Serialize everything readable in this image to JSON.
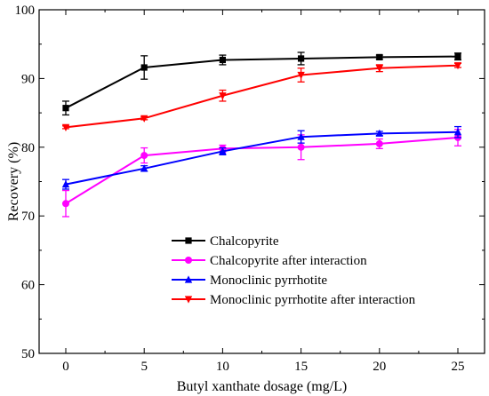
{
  "chart_data": {
    "type": "line",
    "xlabel": "Butyl xanthate dosage (mg/L)",
    "ylabel": "Recovery (%)",
    "xlim": [
      -1.7,
      26.7
    ],
    "ylim": [
      50,
      100
    ],
    "x_ticks": [
      0,
      5,
      10,
      15,
      20,
      25
    ],
    "y_ticks": [
      50,
      60,
      70,
      80,
      90,
      100
    ],
    "x": [
      0,
      5,
      10,
      15,
      20,
      25
    ],
    "grid": false,
    "legend_position": "lower-center",
    "series": [
      {
        "name": "Chalcopyrite",
        "color": "#000000",
        "marker": "square",
        "values": [
          85.7,
          91.6,
          92.7,
          92.9,
          93.1,
          93.2
        ],
        "errors": [
          1.0,
          1.7,
          0.7,
          0.9,
          0.3,
          0.5
        ]
      },
      {
        "name": "Chalcopyrite after interaction",
        "color": "#ff00ff",
        "marker": "circle",
        "values": [
          71.8,
          78.8,
          79.8,
          80.0,
          80.5,
          81.4
        ],
        "errors": [
          1.9,
          1.1,
          0.5,
          1.8,
          0.7,
          1.2
        ]
      },
      {
        "name": "Monoclinic pyrrhotite",
        "color": "#0000ff",
        "marker": "triangle-up",
        "values": [
          74.6,
          76.9,
          79.4,
          81.5,
          82.0,
          82.2
        ],
        "errors": [
          0.7,
          0.4,
          0.5,
          0.9,
          0.3,
          0.8
        ]
      },
      {
        "name": "Monoclinic pyrrhotite after interaction",
        "color": "#ff0000",
        "marker": "triangle-down",
        "values": [
          82.9,
          84.2,
          87.5,
          90.5,
          91.5,
          91.9
        ],
        "errors": [
          0.2,
          0.2,
          0.8,
          1.0,
          0.5,
          0.3
        ]
      }
    ]
  }
}
